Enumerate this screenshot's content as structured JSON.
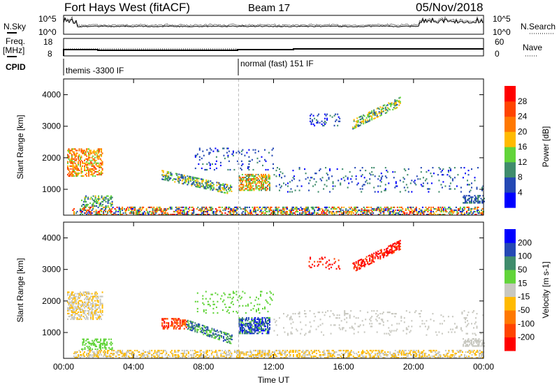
{
  "header": {
    "title": "Fort Hays West (fitACF)",
    "beam": "Beam 17",
    "date": "05/Nov/2018"
  },
  "noise_panel": {
    "left_label": "N.Sky",
    "right_label": "N.Search",
    "left_ticks": [
      "10^5",
      "10^0"
    ],
    "right_ticks": [
      "10^5",
      "10^0"
    ]
  },
  "freq_panel": {
    "left_label_1": "Freq.",
    "left_label_2": "[MHz]",
    "left_ticks": [
      "18",
      "8"
    ],
    "right_label": "Nave",
    "right_ticks": [
      "60",
      "0"
    ]
  },
  "cpid_panel": {
    "label": "CPID",
    "modes": [
      {
        "name": "themis -3300 IF",
        "start_hour": 0
      },
      {
        "name": "normal (fast) 151 IF",
        "start_hour": 10
      }
    ]
  },
  "chart_data": [
    {
      "type": "heatmap",
      "title": "Power",
      "ylabel": "Slant Range [km]",
      "xlabel": "Time UT",
      "ylim": [
        180,
        4500
      ],
      "xlim": [
        0,
        24
      ],
      "xticks": [
        "00:00",
        "04:00",
        "08:00",
        "12:00",
        "16:00",
        "20:00",
        "00:00"
      ],
      "yticks": [
        "1000",
        "2000",
        "3000",
        "4000"
      ],
      "colorbar": {
        "label": "Power [dB]",
        "ticks": [
          "4",
          "8",
          "12",
          "16",
          "20",
          "24",
          "28"
        ],
        "bounds": [
          0,
          4,
          8,
          12,
          16,
          20,
          24,
          28,
          32
        ],
        "colors": [
          "#0000ff",
          "#2448b4",
          "#3f8c6c",
          "#62d43a",
          "#ffba00",
          "#ff7800",
          "#ff4400",
          "#ff0000"
        ]
      },
      "clusters": [
        {
          "t": [
            0.2,
            2.2
          ],
          "r": [
            1400,
            2300
          ],
          "slope": 0,
          "value": [
            14,
            28
          ],
          "density": 0.5
        },
        {
          "t": [
            1.0,
            2.8
          ],
          "r": [
            450,
            800
          ],
          "slope": 0,
          "value": [
            6,
            18
          ],
          "density": 0.4
        },
        {
          "t": [
            5.6,
            9.6
          ],
          "r": [
            1300,
            1600
          ],
          "slope": -120,
          "value": [
            4,
            20
          ],
          "density": 0.5
        },
        {
          "t": [
            10.0,
            11.8
          ],
          "r": [
            950,
            1450
          ],
          "slope": 0,
          "value": [
            8,
            26
          ],
          "density": 0.6
        },
        {
          "t": [
            16.5,
            19.2
          ],
          "r": [
            2900,
            3200
          ],
          "slope": 180,
          "value": [
            6,
            20
          ],
          "density": 0.5
        },
        {
          "t": [
            14.0,
            15.8
          ],
          "r": [
            3000,
            3400
          ],
          "slope": 0,
          "value": [
            2,
            10
          ],
          "density": 0.15
        },
        {
          "t": [
            12.0,
            24.0
          ],
          "r": [
            900,
            1700
          ],
          "slope": 0,
          "value": [
            2,
            12
          ],
          "density": 0.07
        },
        {
          "t": [
            7.5,
            12.0
          ],
          "r": [
            1600,
            2300
          ],
          "slope": 0,
          "value": [
            2,
            10
          ],
          "density": 0.08
        },
        {
          "t": [
            0.5,
            24.0
          ],
          "r": [
            180,
            420
          ],
          "slope": 0,
          "value": [
            2,
            30
          ],
          "density": 0.45
        },
        {
          "t": [
            22.8,
            24.0
          ],
          "r": [
            550,
            800
          ],
          "slope": 0,
          "value": [
            4,
            10
          ],
          "density": 0.5
        }
      ]
    },
    {
      "type": "heatmap",
      "title": "Velocity",
      "ylabel": "Slant Range [km]",
      "xlabel": "Time UT",
      "ylim": [
        180,
        4500
      ],
      "xlim": [
        0,
        24
      ],
      "xticks": [
        "00:00",
        "04:00",
        "08:00",
        "12:00",
        "16:00",
        "20:00",
        "00:00"
      ],
      "yticks": [
        "1000",
        "2000",
        "3000",
        "4000"
      ],
      "colorbar": {
        "label": "Velocity [m s-1]",
        "ticks": [
          "200",
          "100",
          "50",
          "15",
          "-15",
          "-50",
          "-100",
          "-200"
        ],
        "bounds": [
          -300,
          -200,
          -100,
          -50,
          -15,
          15,
          50,
          100,
          200,
          300
        ],
        "colors": [
          "#ff0000",
          "#ff4400",
          "#ff7800",
          "#ffba00",
          "#c8c8c0",
          "#62d43a",
          "#3f8c6c",
          "#2448b4",
          "#0000ff"
        ]
      },
      "clusters": [
        {
          "t": [
            0.2,
            2.2
          ],
          "r": [
            1400,
            2300
          ],
          "slope": 0,
          "value": [
            -30,
            10
          ],
          "density": 0.5
        },
        {
          "t": [
            1.0,
            2.8
          ],
          "r": [
            450,
            800
          ],
          "slope": 0,
          "value": [
            15,
            45
          ],
          "density": 0.4
        },
        {
          "t": [
            5.6,
            7.0
          ],
          "r": [
            1100,
            1450
          ],
          "slope": 0,
          "value": [
            -250,
            -60
          ],
          "density": 0.5
        },
        {
          "t": [
            7.0,
            9.6
          ],
          "r": [
            1100,
            1400
          ],
          "slope": -120,
          "value": [
            20,
            150
          ],
          "density": 0.5
        },
        {
          "t": [
            10.0,
            11.8
          ],
          "r": [
            950,
            1450
          ],
          "slope": 0,
          "value": [
            20,
            250
          ],
          "density": 0.6
        },
        {
          "t": [
            16.5,
            19.2
          ],
          "r": [
            2900,
            3200
          ],
          "slope": 180,
          "value": [
            -300,
            -150
          ],
          "density": 0.5
        },
        {
          "t": [
            14.0,
            15.8
          ],
          "r": [
            3000,
            3400
          ],
          "slope": 0,
          "value": [
            -300,
            -150
          ],
          "density": 0.15
        },
        {
          "t": [
            12.0,
            24.0
          ],
          "r": [
            900,
            1700
          ],
          "slope": 0,
          "value": [
            -14,
            14
          ],
          "density": 0.07
        },
        {
          "t": [
            7.5,
            12.0
          ],
          "r": [
            1600,
            2300
          ],
          "slope": 0,
          "value": [
            15,
            45
          ],
          "density": 0.08
        },
        {
          "t": [
            0.5,
            24.0
          ],
          "r": [
            180,
            420
          ],
          "slope": 0,
          "value": [
            -45,
            14
          ],
          "density": 0.45
        },
        {
          "t": [
            22.8,
            24.0
          ],
          "r": [
            550,
            800
          ],
          "slope": 0,
          "value": [
            -14,
            14
          ],
          "density": 0.5
        }
      ]
    }
  ]
}
